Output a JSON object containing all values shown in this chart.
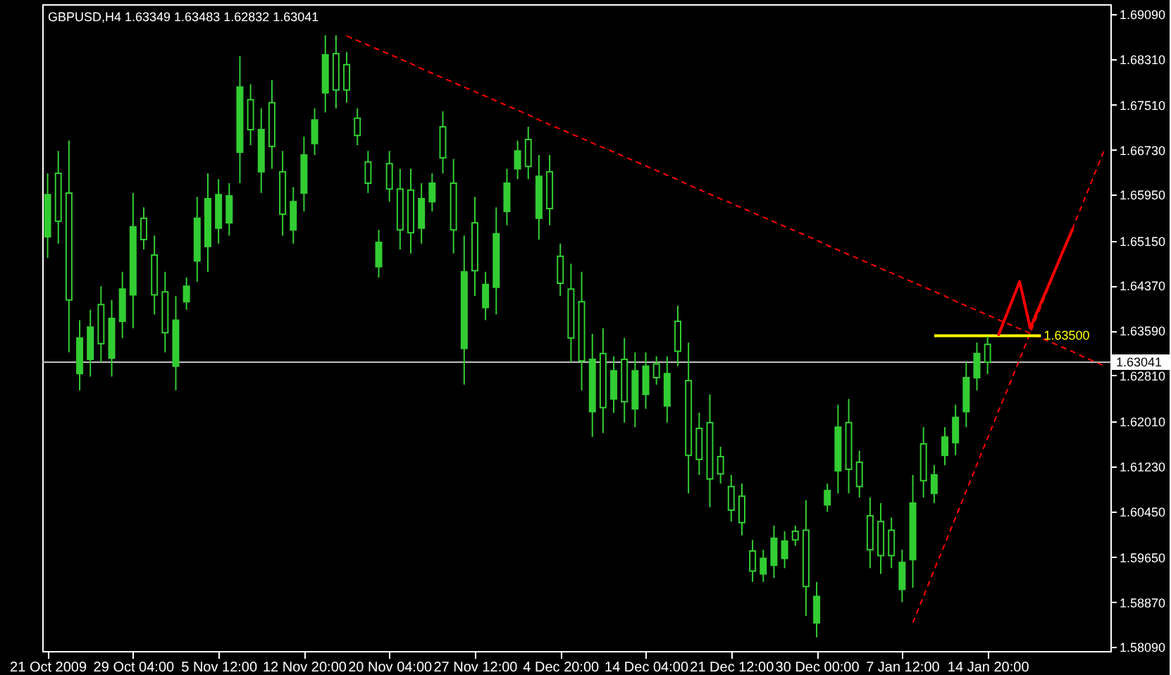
{
  "chart_data": {
    "type": "candlestick",
    "title": "GBPUSD,H4  1.63349 1.63483 1.62832 1.63041",
    "color": "#32cd32",
    "categories": [
      "21 Oct 2009",
      null,
      null,
      null,
      null,
      null,
      null,
      null,
      "29 Oct 04:00",
      null,
      null,
      null,
      null,
      null,
      null,
      null,
      "5 Nov 12:00",
      null,
      null,
      null,
      null,
      null,
      null,
      null,
      "12 Nov 20:00",
      null,
      null,
      null,
      null,
      null,
      null,
      null,
      "20 Nov 04:00",
      null,
      null,
      null,
      null,
      null,
      null,
      null,
      "27 Nov 12:00",
      null,
      null,
      null,
      null,
      null,
      null,
      null,
      "4 Dec 20:00",
      null,
      null,
      null,
      null,
      null,
      null,
      null,
      "14 Dec 04:00",
      null,
      null,
      null,
      null,
      null,
      null,
      null,
      "21 Dec 12:00",
      null,
      null,
      null,
      null,
      null,
      null,
      null,
      "30 Dec 00:00",
      null,
      null,
      null,
      null,
      null,
      null,
      null,
      "7 Jan 12:00",
      null,
      null,
      null,
      null,
      null,
      null,
      null,
      "14 Jan 20:00",
      null,
      null,
      null,
      null,
      null,
      null,
      null,
      null,
      null,
      null,
      null
    ],
    "ohlc": [
      [
        1.6522,
        1.6632,
        1.6485,
        1.6595
      ],
      [
        1.6632,
        1.6671,
        1.651,
        1.6549
      ],
      [
        1.6598,
        1.6689,
        1.6321,
        1.6412
      ],
      [
        1.6284,
        1.6377,
        1.6255,
        1.6346
      ],
      [
        1.6309,
        1.6395,
        1.6279,
        1.6365
      ],
      [
        1.6404,
        1.6436,
        1.6304,
        1.6336
      ],
      [
        1.6311,
        1.6412,
        1.6279,
        1.638
      ],
      [
        1.6375,
        1.6461,
        1.6346,
        1.6431
      ],
      [
        1.6421,
        1.6598,
        1.6363,
        1.6539
      ],
      [
        1.6554,
        1.6573,
        1.65,
        1.6517
      ],
      [
        1.649,
        1.6524,
        1.6387,
        1.6421
      ],
      [
        1.6426,
        1.6461,
        1.6321,
        1.6355
      ],
      [
        1.6297,
        1.6419,
        1.6255,
        1.6377
      ],
      [
        1.6409,
        1.6451,
        1.6395,
        1.6436
      ],
      [
        1.648,
        1.6591,
        1.6444,
        1.6554
      ],
      [
        1.6505,
        1.6632,
        1.6461,
        1.6588
      ],
      [
        1.6537,
        1.6622,
        1.651,
        1.6595
      ],
      [
        1.6546,
        1.6615,
        1.6524,
        1.6593
      ],
      [
        1.6669,
        1.6836,
        1.6615,
        1.6782
      ],
      [
        1.676,
        1.6787,
        1.6681,
        1.6708
      ],
      [
        1.6635,
        1.6745,
        1.6598,
        1.6708
      ],
      [
        1.6755,
        1.6794,
        1.664,
        1.6679
      ],
      [
        1.6635,
        1.6671,
        1.6524,
        1.6561
      ],
      [
        1.6534,
        1.6608,
        1.651,
        1.6583
      ],
      [
        1.6598,
        1.6696,
        1.6566,
        1.6664
      ],
      [
        1.6684,
        1.6745,
        1.6664,
        1.6725
      ],
      [
        1.6772,
        1.6872,
        1.6738,
        1.6838
      ],
      [
        1.684,
        1.6872,
        1.6745,
        1.6777
      ],
      [
        1.6821,
        1.6843,
        1.6755,
        1.6777
      ],
      [
        1.6728,
        1.6745,
        1.6681,
        1.6698
      ],
      [
        1.6652,
        1.6671,
        1.6598,
        1.6615
      ],
      [
        1.647,
        1.6534,
        1.6451,
        1.6512
      ],
      [
        1.6649,
        1.6671,
        1.6583,
        1.6605
      ],
      [
        1.6605,
        1.664,
        1.65,
        1.6534
      ],
      [
        1.6603,
        1.664,
        1.6493,
        1.6529
      ],
      [
        1.6537,
        1.6615,
        1.651,
        1.6588
      ],
      [
        1.6583,
        1.6632,
        1.6566,
        1.6615
      ],
      [
        1.6713,
        1.674,
        1.6632,
        1.6659
      ],
      [
        1.6615,
        1.6657,
        1.6493,
        1.6534
      ],
      [
        1.6328,
        1.6524,
        1.6265,
        1.6461
      ],
      [
        1.6546,
        1.6591,
        1.6419,
        1.6463
      ],
      [
        1.6399,
        1.6461,
        1.6377,
        1.6439
      ],
      [
        1.6434,
        1.6573,
        1.6387,
        1.6527
      ],
      [
        1.6566,
        1.664,
        1.6542,
        1.6615
      ],
      [
        1.664,
        1.6689,
        1.6622,
        1.6671
      ],
      [
        1.6691,
        1.6713,
        1.6622,
        1.6644
      ],
      [
        1.6554,
        1.6664,
        1.6517,
        1.6627
      ],
      [
        1.6635,
        1.6664,
        1.6542,
        1.6571
      ],
      [
        1.6488,
        1.651,
        1.6419,
        1.6441
      ],
      [
        1.6431,
        1.6475,
        1.6304,
        1.6346
      ],
      [
        1.6409,
        1.6461,
        1.6255,
        1.6306
      ],
      [
        1.6218,
        1.6353,
        1.6174,
        1.6309
      ],
      [
        1.6319,
        1.6363,
        1.6181,
        1.6225
      ],
      [
        1.624,
        1.6314,
        1.6216,
        1.6289
      ],
      [
        1.6309,
        1.6346,
        1.6199,
        1.6235
      ],
      [
        1.6223,
        1.6321,
        1.6191,
        1.6289
      ],
      [
        1.6248,
        1.6321,
        1.6223,
        1.6297
      ],
      [
        1.6301,
        1.6314,
        1.6265,
        1.6277
      ],
      [
        1.6228,
        1.6314,
        1.6199,
        1.6284
      ],
      [
        1.6375,
        1.6402,
        1.6297,
        1.6323
      ],
      [
        1.6272,
        1.6338,
        1.6076,
        1.6142
      ],
      [
        1.6189,
        1.6216,
        1.6108,
        1.6135
      ],
      [
        1.6199,
        1.6248,
        1.6052,
        1.6101
      ],
      [
        1.614,
        1.6157,
        1.6093,
        1.611
      ],
      [
        1.6088,
        1.6108,
        1.6027,
        1.6047
      ],
      [
        1.6071,
        1.6093,
        1.6003,
        1.6025
      ],
      [
        1.5976,
        1.5995,
        1.5922,
        1.5941
      ],
      [
        1.5936,
        1.5978,
        1.5922,
        1.5963
      ],
      [
        1.5951,
        1.602,
        1.5929,
        1.5998
      ],
      [
        1.5963,
        1.601,
        1.5946,
        1.5993
      ],
      [
        1.601,
        1.602,
        1.5985,
        1.5995
      ],
      [
        1.6012,
        1.6064,
        1.5863,
        1.5914
      ],
      [
        1.5851,
        1.5922,
        1.5826,
        1.5897
      ],
      [
        1.6056,
        1.6093,
        1.6044,
        1.6081
      ],
      [
        1.6115,
        1.623,
        1.6076,
        1.6191
      ],
      [
        1.6199,
        1.624,
        1.6076,
        1.6118
      ],
      [
        1.613,
        1.615,
        1.6069,
        1.6088
      ],
      [
        1.6037,
        1.6069,
        1.5946,
        1.5978
      ],
      [
        1.6027,
        1.6059,
        1.5936,
        1.5968
      ],
      [
        1.6012,
        1.6034,
        1.5946,
        1.5968
      ],
      [
        1.5909,
        1.5978,
        1.5887,
        1.5956
      ],
      [
        1.5961,
        1.6108,
        1.5912,
        1.6059
      ],
      [
        1.6162,
        1.6191,
        1.6069,
        1.6098
      ],
      [
        1.6076,
        1.6125,
        1.6059,
        1.6108
      ],
      [
        1.6142,
        1.6191,
        1.6125,
        1.6174
      ],
      [
        1.6164,
        1.623,
        1.6142,
        1.6208
      ],
      [
        1.6218,
        1.6304,
        1.6191,
        1.6277
      ],
      [
        1.6277,
        1.6338,
        1.6255,
        1.6319
      ],
      [
        1.63349,
        1.63483,
        1.62832,
        1.63041
      ],
      null,
      null,
      null,
      null,
      null,
      null,
      null,
      null,
      null,
      null,
      null
    ],
    "series": [
      {
        "type": "line",
        "color": "#ff0000",
        "line_style": "dashed",
        "values": [
          null,
          null,
          null,
          null,
          null,
          null,
          null,
          null,
          null,
          null,
          null,
          null,
          null,
          null,
          null,
          null,
          null,
          null,
          null,
          null,
          null,
          null,
          null,
          null,
          null,
          null,
          null,
          null,
          1.6871,
          1.6863,
          1.6855,
          1.6847,
          1.6839,
          1.6831,
          1.6823,
          1.6814,
          1.6806,
          1.6798,
          1.679,
          1.6782,
          1.6774,
          1.6766,
          1.6758,
          1.675,
          1.6742,
          1.6734,
          1.6725,
          1.6717,
          1.6709,
          1.6701,
          1.6693,
          1.6685,
          1.6677,
          1.6669,
          1.6661,
          1.6653,
          1.6645,
          1.6637,
          1.6629,
          1.6621,
          1.6612,
          1.6604,
          1.6596,
          1.6588,
          1.658,
          1.6572,
          1.6564,
          1.6556,
          1.6548,
          1.654,
          1.6532,
          1.6524,
          1.6516,
          1.6507,
          1.6499,
          1.6491,
          1.6483,
          1.6475,
          1.6467,
          1.6459,
          1.6451,
          1.6443,
          1.6435,
          1.6427,
          1.6419,
          1.641,
          1.6402,
          1.6394,
          1.6386,
          1.6378,
          1.637,
          1.6362,
          1.6354,
          1.6346,
          1.6338,
          1.633,
          1.6322,
          1.6313,
          1.6305,
          1.6297
        ]
      },
      {
        "type": "line",
        "color": "#ff0000",
        "line_style": "dashed",
        "values": [
          null,
          null,
          null,
          null,
          null,
          null,
          null,
          null,
          null,
          null,
          null,
          null,
          null,
          null,
          null,
          null,
          null,
          null,
          null,
          null,
          null,
          null,
          null,
          null,
          null,
          null,
          null,
          null,
          null,
          null,
          null,
          null,
          null,
          null,
          null,
          null,
          null,
          null,
          null,
          null,
          null,
          null,
          null,
          null,
          null,
          null,
          null,
          null,
          null,
          null,
          null,
          null,
          null,
          null,
          null,
          null,
          null,
          null,
          null,
          null,
          null,
          null,
          null,
          null,
          null,
          null,
          null,
          null,
          null,
          null,
          null,
          null,
          null,
          null,
          null,
          null,
          null,
          null,
          null,
          null,
          null,
          1.5851,
          1.5897,
          1.5943,
          1.5988,
          1.6034,
          1.608,
          1.6126,
          1.6172,
          1.6218,
          1.6263,
          1.6309,
          1.6355,
          1.6401,
          1.6447,
          1.6493,
          1.6538,
          1.6584,
          1.663,
          1.6676
        ]
      },
      {
        "type": "line",
        "color": "#ffff00",
        "line_style": "solid",
        "values": [
          null,
          null,
          null,
          null,
          null,
          null,
          null,
          null,
          null,
          null,
          null,
          null,
          null,
          null,
          null,
          null,
          null,
          null,
          null,
          null,
          null,
          null,
          null,
          null,
          null,
          null,
          null,
          null,
          null,
          null,
          null,
          null,
          null,
          null,
          null,
          null,
          null,
          null,
          null,
          null,
          null,
          null,
          null,
          null,
          null,
          null,
          null,
          null,
          null,
          null,
          null,
          null,
          null,
          null,
          null,
          null,
          null,
          null,
          null,
          null,
          null,
          null,
          null,
          null,
          null,
          null,
          null,
          null,
          null,
          null,
          null,
          null,
          null,
          null,
          null,
          null,
          null,
          null,
          null,
          null,
          null,
          null,
          null,
          1.635,
          1.635,
          1.635,
          1.635,
          1.635,
          1.635,
          1.635,
          1.635,
          1.635,
          1.635,
          1.635,
          null,
          null,
          null,
          null,
          null,
          null
        ]
      },
      {
        "type": "line",
        "color": "#ff0000",
        "line_style": "solid",
        "values": [
          null,
          null,
          null,
          null,
          null,
          null,
          null,
          null,
          null,
          null,
          null,
          null,
          null,
          null,
          null,
          null,
          null,
          null,
          null,
          null,
          null,
          null,
          null,
          null,
          null,
          null,
          null,
          null,
          null,
          null,
          null,
          null,
          null,
          null,
          null,
          null,
          null,
          null,
          null,
          null,
          null,
          null,
          null,
          null,
          null,
          null,
          null,
          null,
          null,
          null,
          null,
          null,
          null,
          null,
          null,
          null,
          null,
          null,
          null,
          null,
          null,
          null,
          null,
          null,
          null,
          null,
          null,
          null,
          null,
          null,
          null,
          null,
          null,
          null,
          null,
          null,
          null,
          null,
          null,
          null,
          null,
          null,
          null,
          null,
          null,
          null,
          null,
          null,
          null,
          1.635,
          1.6397,
          1.6444,
          1.6363,
          1.6407,
          1.645,
          1.6494,
          1.6537,
          null,
          null,
          null
        ]
      }
    ],
    "ref_lines": [
      {
        "axis": "y",
        "value": 1.63041,
        "label": "1.63041",
        "color": "#c0c0c0"
      }
    ],
    "annotations": [
      "1.63500"
    ],
    "ylim": [
      1.5802,
      1.6926
    ],
    "yticks": [
      {
        "value": 1.5809,
        "label": "1.58090"
      },
      {
        "value": 1.5887,
        "label": "1.58870"
      },
      {
        "value": 1.5965,
        "label": "1.59650"
      },
      {
        "value": 1.6045,
        "label": "1.60450"
      },
      {
        "value": 1.6123,
        "label": "1.61230"
      },
      {
        "value": 1.6201,
        "label": "1.62010"
      },
      {
        "value": 1.6281,
        "label": "1.62810"
      },
      {
        "value": 1.6359,
        "label": "1.63590"
      },
      {
        "value": 1.6437,
        "label": "1.64370"
      },
      {
        "value": 1.6515,
        "label": "1.65150"
      },
      {
        "value": 1.6595,
        "label": "1.65950"
      },
      {
        "value": 1.6673,
        "label": "1.66730"
      },
      {
        "value": 1.6751,
        "label": "1.67510"
      },
      {
        "value": 1.6831,
        "label": "1.68310"
      },
      {
        "value": 1.6909,
        "label": "1.69090"
      }
    ],
    "grid": false,
    "marker": "none"
  }
}
